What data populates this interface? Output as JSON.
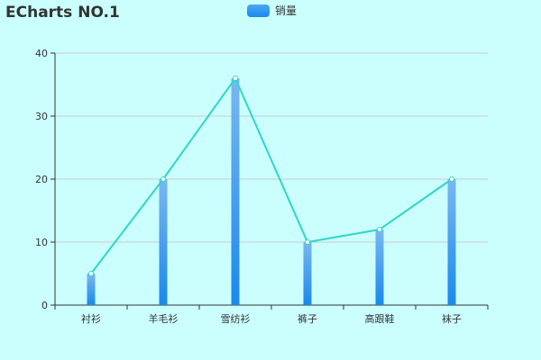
{
  "chart_data": {
    "type": "bar",
    "title": "ECharts NO.1",
    "legend": {
      "entries": [
        "销量"
      ],
      "placement": "top-center"
    },
    "categories": [
      "衬衫",
      "羊毛衫",
      "雪纺衫",
      "裤子",
      "高跟鞋",
      "袜子"
    ],
    "series": [
      {
        "name": "销量",
        "type": "bar",
        "values": [
          5,
          20,
          36,
          10,
          12,
          20
        ]
      },
      {
        "type": "line",
        "values": [
          5,
          20,
          36,
          10,
          12,
          20
        ]
      }
    ],
    "ylim": [
      0,
      40
    ],
    "yticks": [
      0,
      10,
      20,
      30,
      40
    ],
    "grid": true,
    "colors": {
      "bar_top": "#7ab8f0",
      "bar_bottom": "#1a88ec",
      "line": "#2fd6c8",
      "grid": "#c8c8c8",
      "background": "#cbfffe"
    }
  }
}
